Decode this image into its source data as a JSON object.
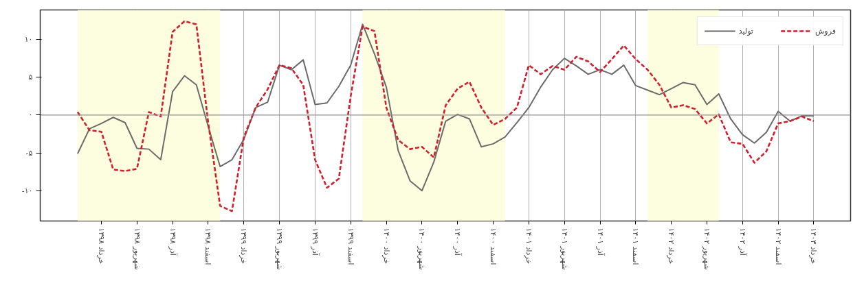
{
  "chart_data": {
    "type": "line",
    "categories": [
      null,
      null,
      "خرداد ۱۳۹۸",
      null,
      null,
      "شهریور ۱۳۹۸",
      null,
      null,
      "آذر ۱۳۹۸",
      null,
      null,
      "اسفند ۱۳۹۸",
      null,
      null,
      "خرداد ۱۳۹۹",
      null,
      null,
      "شهریور ۱۳۹۹",
      null,
      null,
      "آذر ۱۳۹۹",
      null,
      null,
      "اسفند ۱۳۹۹",
      null,
      null,
      "خرداد ۱۴۰۰",
      null,
      null,
      "شهریور ۱۴۰۰",
      null,
      null,
      "آذر ۱۴۰۰",
      null,
      null,
      "اسفند ۱۴۰۰",
      null,
      null,
      "خرداد ۱۴۰۱",
      null,
      null,
      "شهریور ۱۴۰۱",
      null,
      null,
      "آذر ۱۴۰۱",
      null,
      null,
      "اسفند ۱۴۰۱",
      null,
      null,
      "خرداد ۱۴۰۲",
      null,
      null,
      "شهریور ۱۴۰۲",
      null,
      null,
      "آذر ۱۴۰۲",
      null,
      null,
      "اسفند ۱۴۰۲",
      null,
      null,
      "خرداد ۱۴۰۳"
    ],
    "series": [
      {
        "name": "تولید",
        "color": "#6b6b6b",
        "line_style": "solid",
        "values": [
          -5.1,
          -1.8,
          -1.1,
          -0.3,
          -1.0,
          -4.4,
          -4.5,
          -5.9,
          3.1,
          5.2,
          4.0,
          -1.5,
          -6.8,
          -5.9,
          -3.2,
          1.0,
          1.7,
          6.6,
          6.0,
          7.3,
          1.4,
          1.6,
          3.8,
          6.6,
          12.0,
          8.1,
          3.7,
          -4.7,
          -8.7,
          -10.0,
          -6.2,
          -0.8,
          0.1,
          -0.5,
          -4.2,
          -3.8,
          -2.9,
          -1.0,
          1.0,
          3.7,
          6.0,
          7.5,
          6.5,
          5.4,
          6.0,
          5.4,
          6.6,
          3.9,
          3.3,
          2.7,
          3.5,
          4.3,
          4.0,
          1.4,
          2.8,
          -0.5,
          -2.6,
          -3.7,
          -2.3,
          0.5,
          -0.8,
          -0.1,
          -0.1
        ]
      },
      {
        "name": "فروش",
        "color": "#d0202e",
        "line_style": "dashed",
        "values": [
          0.4,
          -2.0,
          -2.2,
          -7.2,
          -7.4,
          -7.1,
          0.4,
          -0.2,
          11.0,
          12.4,
          12.0,
          -1.0,
          -12.0,
          -12.7,
          -2.9,
          1.0,
          3.4,
          6.6,
          6.2,
          4.0,
          -5.9,
          -9.6,
          -8.4,
          2.5,
          11.7,
          11.1,
          1.0,
          -3.3,
          -4.5,
          -4.2,
          -5.6,
          1.3,
          3.5,
          4.4,
          1.0,
          -1.3,
          -0.5,
          1.0,
          6.6,
          5.4,
          6.5,
          6.0,
          7.7,
          7.1,
          5.7,
          7.4,
          9.2,
          7.4,
          6.0,
          4.0,
          1.0,
          1.3,
          0.8,
          -1.1,
          0.1,
          -3.6,
          -3.8,
          -6.3,
          -4.8,
          -1.1,
          -0.8,
          -0.2,
          -0.8
        ]
      }
    ],
    "ylim": [
      -14,
      13.9
    ],
    "yticks": [
      {
        "value": -10,
        "label": "-۱۰"
      },
      {
        "value": -5,
        "label": "-۵"
      },
      {
        "value": 0,
        "label": "۰"
      },
      {
        "value": 5,
        "label": "۵"
      },
      {
        "value": 10,
        "label": "۱۰"
      }
    ],
    "ref_lines": [
      {
        "axis": "y",
        "value": 0,
        "color": "#909090"
      }
    ],
    "grid": "x",
    "legend": "top right"
  }
}
